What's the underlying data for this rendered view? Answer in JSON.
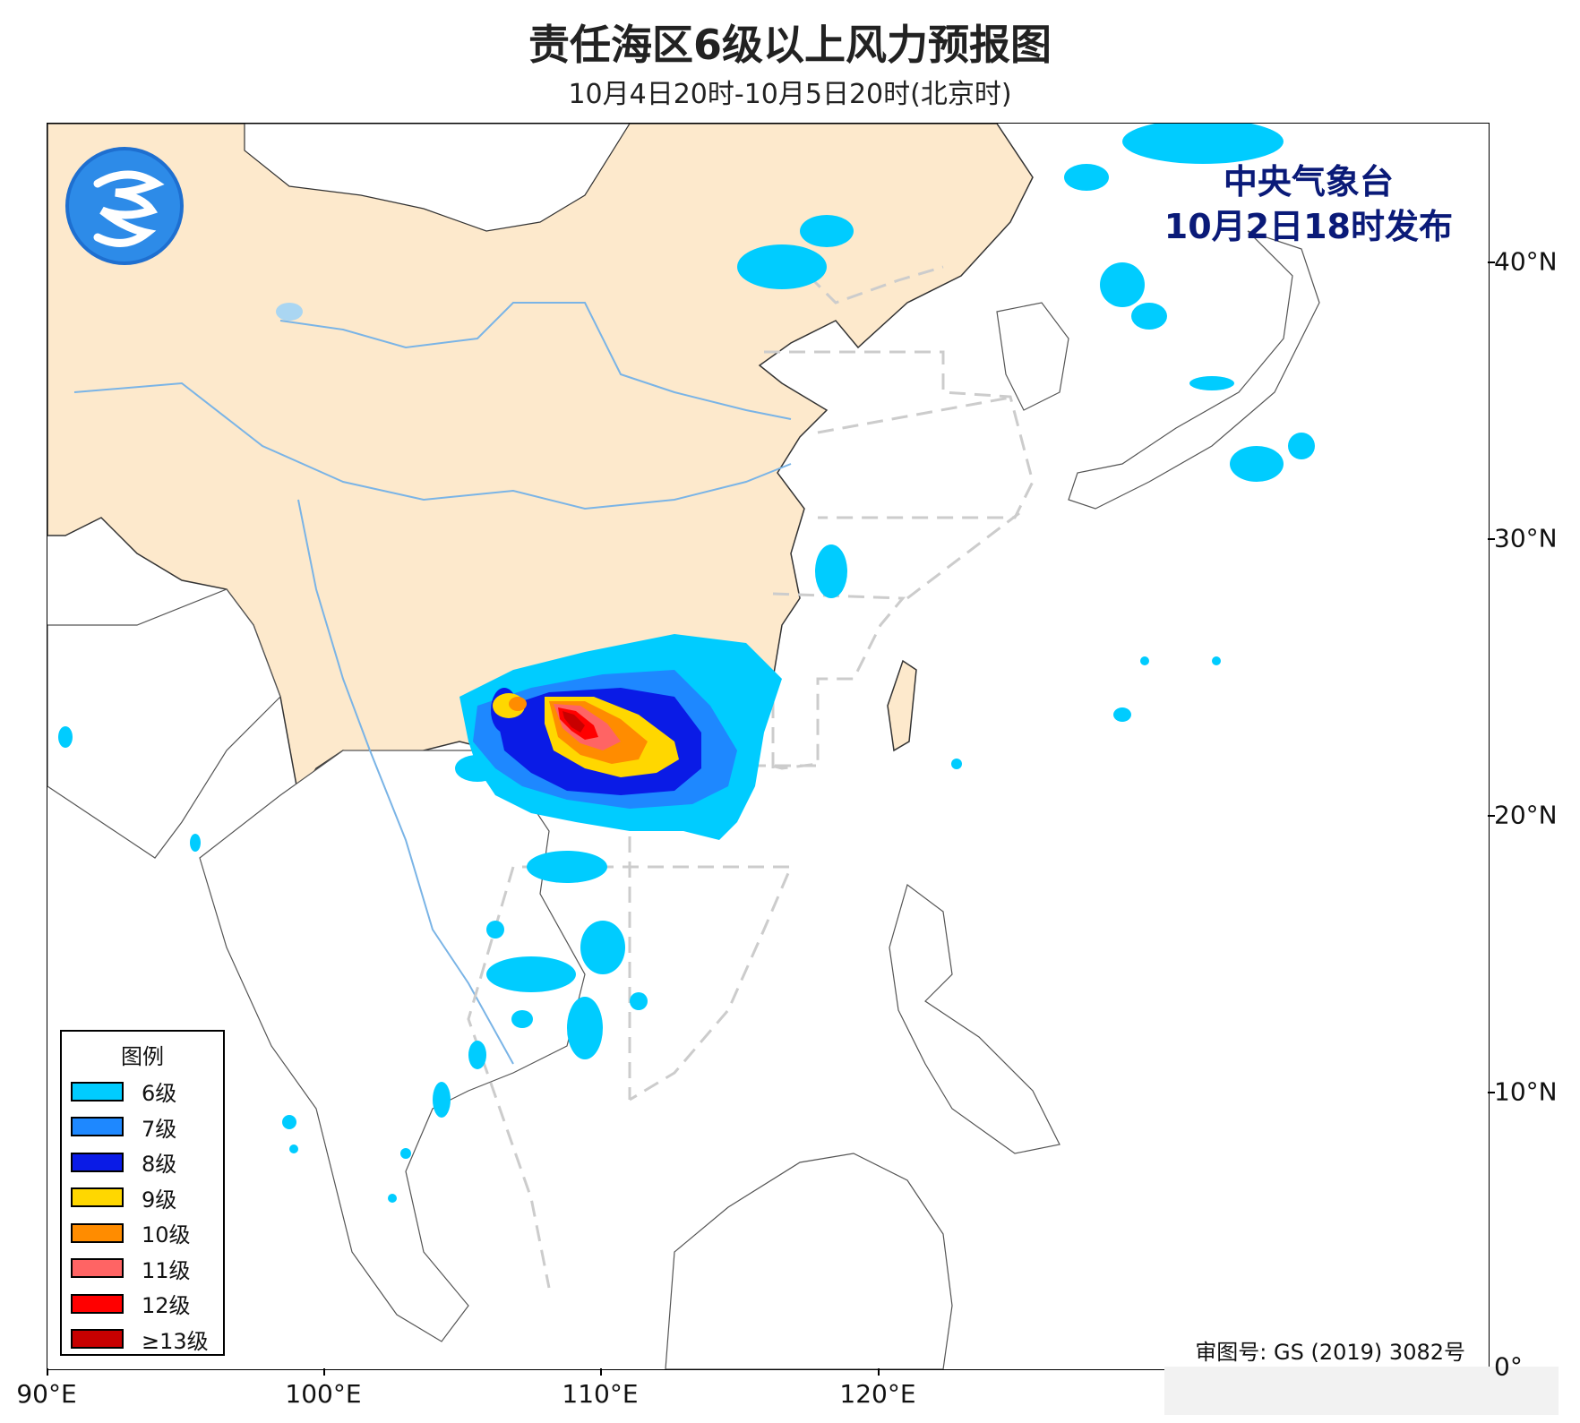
{
  "title": "责任海区6级以上风力预报图",
  "subtitle": "10月4日20时-10月5日20时(北京时)",
  "issuer": {
    "agency": "中央气象台",
    "issued": "10月2日18时发布"
  },
  "legend": {
    "title": "图例",
    "items": [
      {
        "label": "6级",
        "color": "#00ccff"
      },
      {
        "label": "7级",
        "color": "#1e88ff"
      },
      {
        "label": "8级",
        "color": "#0a1be6"
      },
      {
        "label": "9级",
        "color": "#ffd700"
      },
      {
        "label": "10级",
        "color": "#ff8c00"
      },
      {
        "label": "11级",
        "color": "#ff6464"
      },
      {
        "label": "12级",
        "color": "#ff0000"
      },
      {
        "label": "≥13级",
        "color": "#c80000"
      }
    ]
  },
  "approval": "审图号: GS (2019) 3082号",
  "axes": {
    "x_ticks": [
      "90°E",
      "100°E",
      "110°E",
      "120°E"
    ],
    "y_ticks": [
      "40°N",
      "30°N",
      "20°N",
      "10°N",
      "0°"
    ]
  },
  "colors": {
    "land_china": "#fde9cc",
    "land_other": "#ffffff",
    "sea": "#ffffff",
    "border": "#333333",
    "river": "#7ab4e6",
    "zone_line": "#cccccc"
  }
}
